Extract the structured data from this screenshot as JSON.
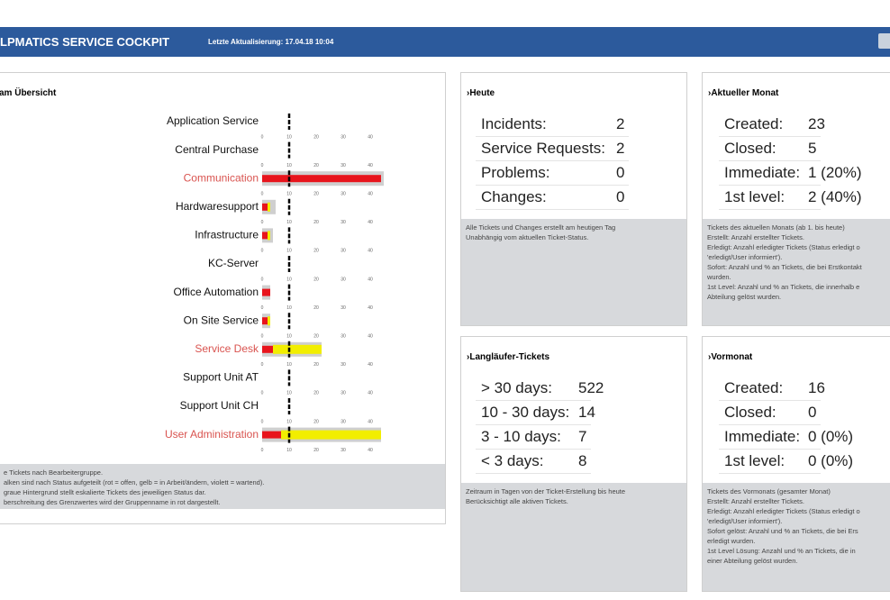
{
  "header": {
    "title": "LPMATICS SERVICE COCKPIT",
    "update": "Letzte Aktualisierung: 17.04.18 10:04"
  },
  "groups": {
    "title": "am Übersicht",
    "xlim": [
      0,
      45
    ],
    "ticks": [
      0,
      10,
      20,
      30,
      40
    ],
    "threshold": 10,
    "colors": {
      "open": "#e8141c",
      "in_progress": "#f2ee00",
      "escalated": "#cfcfcf",
      "alert_name": "#d9534f"
    },
    "rows": [
      {
        "name": "Application Service",
        "open": 0,
        "in_progress": 0,
        "escalated": 0,
        "alert": false
      },
      {
        "name": "Central Purchase",
        "open": 0,
        "in_progress": 0,
        "escalated": 0,
        "alert": false
      },
      {
        "name": "Communication",
        "open": 44,
        "in_progress": 0,
        "escalated": 45,
        "alert": true
      },
      {
        "name": "Hardwaresupport",
        "open": 2,
        "in_progress": 1,
        "escalated": 5,
        "alert": false
      },
      {
        "name": "Infrastructure",
        "open": 2,
        "in_progress": 1,
        "escalated": 4,
        "alert": false
      },
      {
        "name": "KC-Server",
        "open": 0,
        "in_progress": 0,
        "escalated": 0,
        "alert": false
      },
      {
        "name": "Office Automation",
        "open": 3,
        "in_progress": 0,
        "escalated": 3,
        "alert": false
      },
      {
        "name": "On Site Service",
        "open": 2,
        "in_progress": 1,
        "escalated": 3,
        "alert": false
      },
      {
        "name": "Service Desk",
        "open": 4,
        "in_progress": 18,
        "escalated": 22,
        "alert": true
      },
      {
        "name": "Support Unit AT",
        "open": 0,
        "in_progress": 0,
        "escalated": 0,
        "alert": false
      },
      {
        "name": "Support Unit CH",
        "open": 0,
        "in_progress": 0,
        "escalated": 0,
        "alert": false
      },
      {
        "name": "User Administration",
        "open": 7,
        "in_progress": 37,
        "escalated": 44,
        "alert": true
      }
    ],
    "notes": [
      "e Tickets nach Bearbeitergruppe.",
      "alken sind nach Status aufgeteilt (rot = offen, gelb = in Arbeit/ändern, violett = wartend).",
      "graue Hintergrund stellt eskalierte Tickets des jeweiligen Status dar.",
      "berschreitung des Grenzwertes wird der Gruppenname in rot dargestellt."
    ]
  },
  "panels": [
    {
      "title": "›Heute",
      "rows": [
        [
          "Incidents:",
          2
        ],
        [
          "Service Requests:",
          2
        ],
        [
          "Problems:",
          0
        ],
        [
          "Changes:",
          0
        ]
      ],
      "notes": [
        "Alle Tickets und Changes erstellt am heutigen Tag",
        "Unabhängig vom aktuellen Ticket-Status."
      ]
    },
    {
      "title": "›Aktueller Monat",
      "rows": [
        [
          "Created:",
          23
        ],
        [
          "Closed:",
          5
        ],
        [
          "Immediate:",
          "1 (20%)"
        ],
        [
          "1st level:",
          "2 (40%)"
        ]
      ],
      "notes": [
        "Tickets des aktuellen Monats (ab 1. bis heute)",
        "Erstellt: Anzahl erstellter Tickets.",
        "Erledigt: Anzahl erledigter Tickets (Status erledigt o",
        "'erledigt/User informiert').",
        "Sofort: Anzahl und % an Tickets, die bei Erstkontakt",
        "wurden.",
        "1st Level: Anzahl und % an Tickets, die innerhalb e",
        "Abteilung gelöst wurden."
      ]
    },
    {
      "title": "›Langläufer-Tickets",
      "rows": [
        [
          "> 30 days:",
          522
        ],
        [
          "10 - 30 days:",
          14
        ],
        [
          "3 - 10 days:",
          7
        ],
        [
          "< 3 days:",
          8
        ]
      ],
      "notes": [
        "Zeitraum in Tagen von der Ticket-Erstellung bis heute",
        "Berücksichtigt alle aktiven Tickets."
      ]
    },
    {
      "title": "›Vormonat",
      "rows": [
        [
          "Created:",
          16
        ],
        [
          "Closed:",
          0
        ],
        [
          "Immediate:",
          "0 (0%)"
        ],
        [
          "1st level:",
          "0 (0%)"
        ]
      ],
      "notes": [
        "Tickets des Vormonats (gesamter Monat)",
        "Erstellt: Anzahl erstellter Tickets.",
        "Erledigt: Anzahl erledigter Tickets (Status erledigt o",
        "'erledigt/User informiert').",
        "Sofort gelöst: Anzahl und % an Tickets, die bei Ers",
        "erledigt wurden.",
        "1st Level Lösung: Anzahl und % an Tickets, die in",
        "einer Abteilung gelöst wurden."
      ]
    }
  ]
}
